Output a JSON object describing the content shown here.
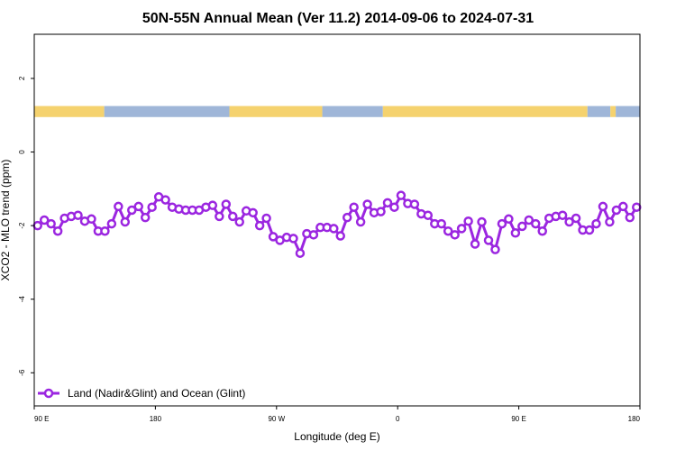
{
  "colors": {
    "series": "#9b26e0",
    "land": "#f5d26e",
    "ocean": "#9fb6d8",
    "axis": "#000000"
  },
  "chart_data": {
    "type": "line",
    "title": "50N-55N Annual Mean (Ver 11.2)   2014-09-06 to 2024-07-31",
    "xlabel": "Longitude (deg E)",
    "ylabel": "XCO2 - MLO trend (ppm)",
    "xlim": [
      90,
      540
    ],
    "ylim": [
      -6.9,
      3.2
    ],
    "x_ticks": [
      {
        "value": 90,
        "label": "90 E"
      },
      {
        "value": 180,
        "label": "180"
      },
      {
        "value": 270,
        "label": "90 W"
      },
      {
        "value": 360,
        "label": "0"
      },
      {
        "value": 450,
        "label": "90 E"
      },
      {
        "value": 540,
        "label": "180"
      }
    ],
    "y_ticks": [
      {
        "value": 2,
        "label": "2"
      },
      {
        "value": 0,
        "label": "0"
      },
      {
        "value": -2,
        "label": "-2"
      },
      {
        "value": -4,
        "label": "-4"
      },
      {
        "value": -6,
        "label": "-6"
      }
    ],
    "surface_band": {
      "y_range": [
        0.95,
        1.25
      ],
      "segments": [
        {
          "type": "land",
          "from": 90,
          "to": 142
        },
        {
          "type": "ocean",
          "from": 142,
          "to": 235
        },
        {
          "type": "land",
          "from": 235,
          "to": 304
        },
        {
          "type": "ocean",
          "from": 304,
          "to": 349
        },
        {
          "type": "land",
          "from": 349,
          "to": 501
        },
        {
          "type": "ocean",
          "from": 501,
          "to": 518
        },
        {
          "type": "land",
          "from": 518,
          "to": 522
        },
        {
          "type": "ocean",
          "from": 522,
          "to": 540
        }
      ]
    },
    "series": [
      {
        "name": "Land (Nadir&Glint) and Ocean (Glint)",
        "x": [
          92.5,
          97.5,
          102.5,
          107.5,
          112.5,
          117.5,
          122.5,
          127.5,
          132.5,
          137.5,
          142.5,
          147.5,
          152.5,
          157.5,
          162.5,
          167.5,
          172.5,
          177.5,
          182.5,
          187.5,
          192.5,
          197.5,
          202.5,
          207.5,
          212.5,
          217.5,
          222.5,
          227.5,
          232.5,
          237.5,
          242.5,
          247.5,
          252.5,
          257.5,
          262.5,
          267.5,
          272.5,
          277.5,
          282.5,
          287.5,
          292.5,
          297.5,
          302.5,
          307.5,
          312.5,
          317.5,
          322.5,
          327.5,
          332.5,
          337.5,
          342.5,
          347.5,
          352.5,
          357.5,
          362.5,
          367.5,
          372.5,
          377.5,
          382.5,
          387.5,
          392.5,
          397.5,
          402.5,
          407.5,
          412.5,
          417.5,
          422.5,
          427.5,
          432.5,
          437.5,
          442.5,
          447.5,
          452.5,
          457.5,
          462.5,
          467.5,
          472.5,
          477.5,
          482.5,
          487.5,
          492.5,
          497.5,
          502.5,
          507.5,
          512.5,
          517.5,
          522.5,
          527.5,
          532.5,
          537.5
        ],
        "y": [
          -2.0,
          -1.85,
          -1.95,
          -2.15,
          -1.8,
          -1.75,
          -1.72,
          -1.88,
          -1.82,
          -2.15,
          -2.15,
          -1.95,
          -1.48,
          -1.9,
          -1.58,
          -1.48,
          -1.78,
          -1.5,
          -1.22,
          -1.3,
          -1.5,
          -1.55,
          -1.58,
          -1.58,
          -1.58,
          -1.5,
          -1.45,
          -1.75,
          -1.42,
          -1.75,
          -1.9,
          -1.6,
          -1.65,
          -2.0,
          -1.8,
          -2.3,
          -2.4,
          -2.32,
          -2.35,
          -2.75,
          -2.22,
          -2.25,
          -2.05,
          -2.05,
          -2.08,
          -2.28,
          -1.78,
          -1.5,
          -1.9,
          -1.42,
          -1.65,
          -1.62,
          -1.38,
          -1.5,
          -1.18,
          -1.4,
          -1.42,
          -1.68,
          -1.72,
          -1.95,
          -1.95,
          -2.15,
          -2.25,
          -2.08,
          -1.88,
          -2.5,
          -1.9,
          -2.4,
          -2.65,
          -1.95,
          -1.82,
          -2.2,
          -2.02,
          -1.85,
          -1.95,
          -2.15,
          -1.8,
          -1.75,
          -1.72,
          -1.9,
          -1.8,
          -2.12,
          -2.12,
          -1.95,
          -1.48,
          -1.9,
          -1.58,
          -1.48,
          -1.78,
          -1.5
        ]
      }
    ],
    "legend": {
      "position": "bottom-left"
    }
  }
}
